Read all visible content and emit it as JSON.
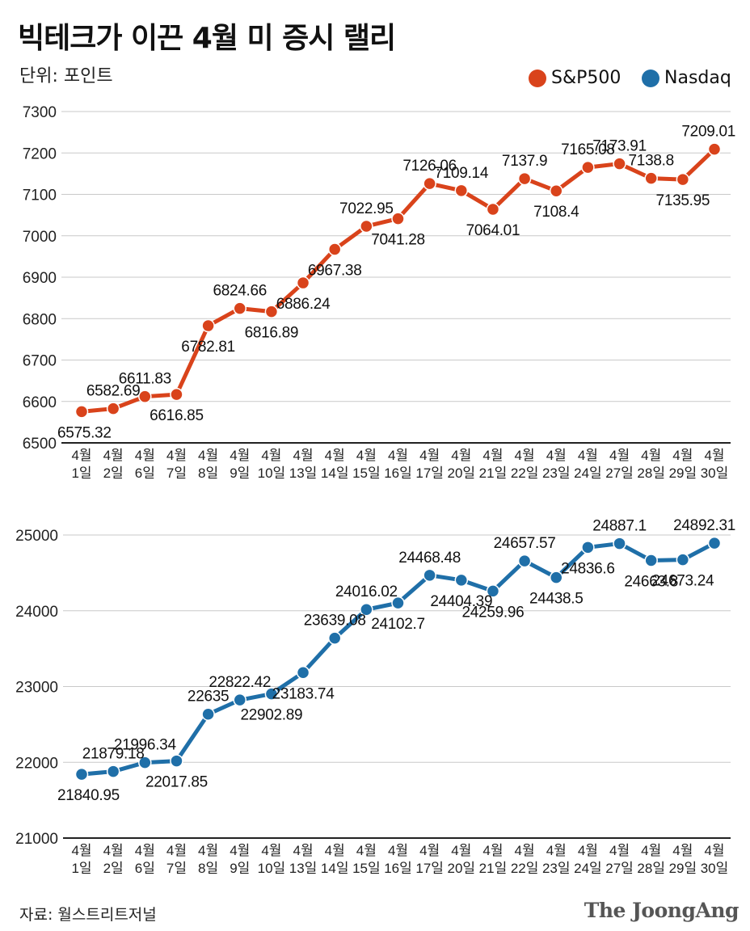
{
  "header": {
    "title": "빅테크가 이끈 4월 미 증시 랠리",
    "unit": "단위: 포인트"
  },
  "legend": [
    {
      "name": "S&P500",
      "color": "#d9431b"
    },
    {
      "name": "Nasdaq",
      "color": "#1f6fa8"
    }
  ],
  "footer": {
    "source": "자료: 월스트리트저널",
    "brand": "The JoongAng"
  },
  "chart_data": [
    {
      "type": "line",
      "series": [
        {
          "name": "S&P500",
          "color": "#d9431b",
          "values": [
            6575.32,
            6582.69,
            6611.83,
            6616.85,
            6782.81,
            6824.66,
            6816.89,
            6886.24,
            6967.38,
            7022.95,
            7041.28,
            7126.06,
            7109.14,
            7064.01,
            7137.9,
            7108.4,
            7165.08,
            7173.91,
            7138.8,
            7135.95,
            7209.01
          ]
        }
      ],
      "categories": [
        [
          "4월",
          "1일"
        ],
        [
          "4월",
          "2일"
        ],
        [
          "4월",
          "6일"
        ],
        [
          "4월",
          "7일"
        ],
        [
          "4월",
          "8일"
        ],
        [
          "4월",
          "9일"
        ],
        [
          "4월",
          "10일"
        ],
        [
          "4월",
          "13일"
        ],
        [
          "4월",
          "14일"
        ],
        [
          "4월",
          "15일"
        ],
        [
          "4월",
          "16일"
        ],
        [
          "4월",
          "17일"
        ],
        [
          "4월",
          "20일"
        ],
        [
          "4월",
          "21일"
        ],
        [
          "4월",
          "22일"
        ],
        [
          "4월",
          "23일"
        ],
        [
          "4월",
          "24일"
        ],
        [
          "4월",
          "27일"
        ],
        [
          "4월",
          "28일"
        ],
        [
          "4월",
          "29일"
        ],
        [
          "4월",
          "30일"
        ]
      ],
      "data_labels": [
        "6575.32",
        "6582.69",
        "6611.83",
        "6616.85",
        "6782.81",
        "6824.66",
        "6816.89",
        "6886.24",
        "6967.38",
        "7022.95",
        "7041.28",
        "7126.06",
        "7109.14",
        "7064.01",
        "7137.9",
        "7108.4",
        "7165.08",
        "7173.91",
        "7138.8",
        "7135.95",
        "7209.01"
      ],
      "label_pos": [
        "below",
        "above",
        "above",
        "below",
        "below",
        "above",
        "below",
        "below",
        "below",
        "above",
        "below",
        "above",
        "above",
        "below",
        "above",
        "below",
        "above",
        "above",
        "above",
        "below",
        "above"
      ],
      "yticks": [
        6500,
        6600,
        6700,
        6800,
        6900,
        7000,
        7100,
        7200,
        7300
      ],
      "ylim": [
        6500,
        7300
      ],
      "grid": true
    },
    {
      "type": "line",
      "series": [
        {
          "name": "Nasdaq",
          "color": "#1f6fa8",
          "values": [
            21840.95,
            21879.18,
            21996.34,
            22017.85,
            22635,
            22822.42,
            22902.89,
            23183.74,
            23639.08,
            24016.02,
            24102.7,
            24468.48,
            24404.39,
            24259.96,
            24657.57,
            24438.5,
            24836.6,
            24887.1,
            24663.8,
            24673.24,
            24892.31
          ]
        }
      ],
      "categories": [
        [
          "4월",
          "1일"
        ],
        [
          "4월",
          "2일"
        ],
        [
          "4월",
          "6일"
        ],
        [
          "4월",
          "7일"
        ],
        [
          "4월",
          "8일"
        ],
        [
          "4월",
          "9일"
        ],
        [
          "4월",
          "10일"
        ],
        [
          "4월",
          "13일"
        ],
        [
          "4월",
          "14일"
        ],
        [
          "4월",
          "15일"
        ],
        [
          "4월",
          "16일"
        ],
        [
          "4월",
          "17일"
        ],
        [
          "4월",
          "20일"
        ],
        [
          "4월",
          "21일"
        ],
        [
          "4월",
          "22일"
        ],
        [
          "4월",
          "23일"
        ],
        [
          "4월",
          "24일"
        ],
        [
          "4월",
          "27일"
        ],
        [
          "4월",
          "28일"
        ],
        [
          "4월",
          "29일"
        ],
        [
          "4월",
          "30일"
        ]
      ],
      "data_labels": [
        "21840.95",
        "21879.18",
        "21996.34",
        "22017.85",
        "22635",
        "22822.42",
        "22902.89",
        "23183.74",
        "23639.08",
        "24016.02",
        "24102.7",
        "24468.48",
        "24404.39",
        "24259.96",
        "24657.57",
        "24438.5",
        "24836.6",
        "24887.1",
        "24663.8",
        "24673.24",
        "24892.31"
      ],
      "label_pos": [
        "below",
        "above",
        "above",
        "below",
        "above",
        "above",
        "below",
        "below",
        "above",
        "above",
        "below",
        "above",
        "below",
        "below",
        "above",
        "below",
        "below",
        "above",
        "below",
        "below",
        "above"
      ],
      "yticks": [
        21000,
        22000,
        23000,
        24000,
        25000
      ],
      "ylim": [
        21000,
        25000
      ],
      "grid": true
    }
  ]
}
